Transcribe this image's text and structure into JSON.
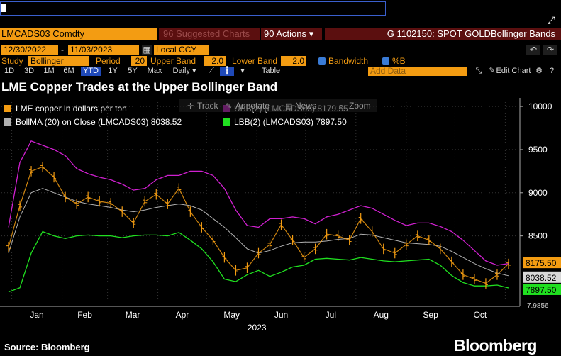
{
  "command": {
    "value": ""
  },
  "ticker": "LMCADS03 Comdty",
  "toolbar": {
    "suggested_charts": "96 Suggested Charts",
    "actions": "90 Actions ▾",
    "header_title": "G 1102150: SPOT GOLDBollinger Bands"
  },
  "params": {
    "start_date": "12/30/2022",
    "end_date": "11/03/2023",
    "currency": "Local CCY",
    "study_label": "Study",
    "study_value": "Bollinger",
    "period_label": "Period",
    "period_value": "20",
    "upper_label": "Upper Band",
    "upper_value": "2.0",
    "lower_label": "Lower Band",
    "lower_value": "2.0",
    "bandwidth_label": "Bandwidth",
    "pctb_label": "%B"
  },
  "ranges": {
    "items": [
      "1D",
      "3D",
      "1M",
      "6M",
      "YTD",
      "1Y",
      "5Y",
      "Max"
    ],
    "frequency": "Daily ▾",
    "table": "Table",
    "add_data_placeholder": "Add Data",
    "edit_chart": "Edit Chart"
  },
  "chart_tools": {
    "track": "Track",
    "annotate": "Annotate",
    "news": "News",
    "zoom": "Zoom"
  },
  "colors": {
    "price": "#f39c12",
    "mid": "#b0b0b0",
    "upper": "#d020d0",
    "lower": "#20e020",
    "accent": "#f39c12"
  },
  "chart_data": {
    "type": "line",
    "title": "LME Copper Trades at the Upper Bollinger Band",
    "x_axis": {
      "months": [
        "Jan",
        "Feb",
        "Mar",
        "Apr",
        "May",
        "Jun",
        "Jul",
        "Aug",
        "Sep",
        "Oct"
      ],
      "year": "2023"
    },
    "y_axis": {
      "ticks": [
        8500,
        9000,
        9500,
        10000
      ],
      "ylim": [
        7700,
        10050
      ],
      "position": "right"
    },
    "legend": [
      {
        "key": "price",
        "label": "LME copper in dollars per ton"
      },
      {
        "key": "upper",
        "label": "UBB(2) (LMCADS03) 8179.55"
      },
      {
        "key": "mid",
        "label": "BollMA (20)  on Close (LMCADS03) 8038.52"
      },
      {
        "key": "lower",
        "label": "LBB(2) (LMCADS03) 7897.50"
      }
    ],
    "last_values": {
      "price": "8175.50",
      "mid": "8038.52",
      "lower": "7897.50"
    },
    "cutoff_label": "7.9856",
    "x_dates": [
      "2022-12-30",
      "2023-01-06",
      "2023-01-13",
      "2023-01-20",
      "2023-01-27",
      "2023-02-03",
      "2023-02-10",
      "2023-02-17",
      "2023-02-24",
      "2023-03-03",
      "2023-03-10",
      "2023-03-17",
      "2023-03-24",
      "2023-03-31",
      "2023-04-07",
      "2023-04-14",
      "2023-04-21",
      "2023-04-28",
      "2023-05-05",
      "2023-05-12",
      "2023-05-19",
      "2023-05-26",
      "2023-06-02",
      "2023-06-09",
      "2023-06-16",
      "2023-06-23",
      "2023-06-30",
      "2023-07-07",
      "2023-07-14",
      "2023-07-21",
      "2023-07-28",
      "2023-08-04",
      "2023-08-11",
      "2023-08-18",
      "2023-08-25",
      "2023-09-01",
      "2023-09-08",
      "2023-09-15",
      "2023-09-22",
      "2023-09-29",
      "2023-10-06",
      "2023-10-13",
      "2023-10-20",
      "2023-10-27",
      "2023-11-03"
    ],
    "series": [
      {
        "name": "LME copper in dollars per ton",
        "key": "price",
        "values": [
          8370,
          8850,
          9250,
          9300,
          9180,
          8950,
          8870,
          8950,
          8900,
          8880,
          8780,
          8650,
          8900,
          8980,
          8870,
          9050,
          8780,
          8600,
          8450,
          8250,
          8100,
          8130,
          8300,
          8400,
          8630,
          8450,
          8250,
          8350,
          8520,
          8500,
          8450,
          8700,
          8550,
          8350,
          8300,
          8400,
          8500,
          8450,
          8350,
          8200,
          8050,
          8000,
          7950,
          8050,
          8175.5
        ]
      },
      {
        "name": "UBB(2) (LMCADS03) 8179.55",
        "key": "upper",
        "values": [
          8600,
          9350,
          9600,
          9550,
          9500,
          9430,
          9280,
          9220,
          9180,
          9150,
          9100,
          9030,
          9050,
          9150,
          9200,
          9200,
          9250,
          9250,
          9200,
          9050,
          8800,
          8620,
          8600,
          8700,
          8700,
          8720,
          8700,
          8640,
          8720,
          8750,
          8800,
          8850,
          8820,
          8750,
          8680,
          8620,
          8650,
          8650,
          8610,
          8550,
          8450,
          8330,
          8210,
          8160,
          8179.55
        ]
      },
      {
        "name": "BollMA (20)  on Close (LMCADS03) 8038.52",
        "key": "mid",
        "values": [
          8300,
          8720,
          9000,
          9050,
          9000,
          8950,
          8900,
          8870,
          8850,
          8830,
          8800,
          8780,
          8800,
          8830,
          8850,
          8870,
          8850,
          8800,
          8700,
          8600,
          8480,
          8350,
          8300,
          8330,
          8380,
          8420,
          8430,
          8430,
          8440,
          8460,
          8470,
          8520,
          8510,
          8480,
          8450,
          8420,
          8410,
          8400,
          8380,
          8320,
          8250,
          8180,
          8120,
          8070,
          8038.52
        ]
      },
      {
        "name": "LBB(2) (LMCADS03) 7897.50",
        "key": "lower",
        "values": [
          7850,
          7900,
          8300,
          8550,
          8500,
          8470,
          8500,
          8510,
          8500,
          8500,
          8480,
          8500,
          8510,
          8510,
          8500,
          8540,
          8450,
          8350,
          8200,
          8000,
          7970,
          8050,
          8100,
          8030,
          8080,
          8140,
          8160,
          8230,
          8240,
          8230,
          8220,
          8250,
          8230,
          8210,
          8200,
          8210,
          8220,
          8230,
          8160,
          8040,
          7960,
          7920,
          7920,
          7930,
          7897.5
        ]
      }
    ]
  },
  "footer": {
    "source": "Source: Bloomberg",
    "brand": "Bloomberg"
  }
}
